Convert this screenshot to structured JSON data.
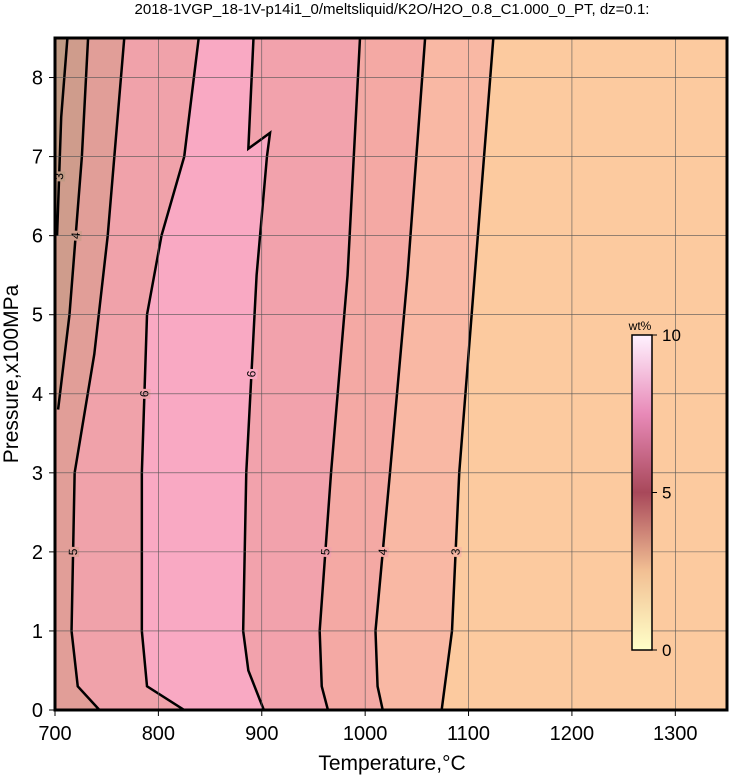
{
  "chart_data": {
    "type": "contour",
    "title": "2018-1VGP_18-1V-p14i1_0/meltsliquid/K2O/H2O_0.8_C1.000_0_PT, dz=0.1:",
    "x_label": "Temperature,°C",
    "y_label": "Pressure,x100MPa",
    "xlim": [
      700,
      1350
    ],
    "ylim": [
      0,
      8.5
    ],
    "xticks": [
      700,
      800,
      900,
      1000,
      1100,
      1200,
      1300
    ],
    "yticks": [
      0,
      1,
      2,
      3,
      4,
      5,
      6,
      7,
      8
    ],
    "grid": true,
    "background": "#fcca9f",
    "line_color": "#000000",
    "contours": [
      {
        "level": 3,
        "fill": "#f9b8a4",
        "x": [
          1074,
          1077,
          1084,
          1091,
          1106,
          1124
        ],
        "y": [
          0,
          0.3,
          1,
          3,
          5.5,
          8.5
        ]
      },
      {
        "level": 4,
        "fill": "#f4a9a4",
        "x": [
          1017,
          1012,
          1010,
          1024,
          1041,
          1058
        ],
        "y": [
          0,
          0.3,
          1,
          3,
          5.5,
          8.5
        ]
      },
      {
        "level": 5,
        "fill": "#f2a2ac",
        "x": [
          964,
          958,
          956,
          967,
          983,
          995
        ],
        "y": [
          0,
          0.3,
          1,
          3,
          5.5,
          8.5
        ]
      },
      {
        "level": 6,
        "fill": "#f9a9c3",
        "x": [
          902,
          887,
          882,
          885,
          895,
          905,
          908,
          887,
          892
        ],
        "y": [
          0,
          0.5,
          1,
          3,
          5.5,
          7.0,
          7.3,
          7.1,
          8.5
        ]
      },
      {
        "level": 6,
        "fill": "#f0a2aa",
        "x": [
          825,
          789,
          784,
          784,
          789,
          803,
          825,
          839
        ],
        "y": [
          0,
          0.3,
          1,
          3,
          5,
          6,
          7,
          8.5
        ]
      },
      {
        "level": 5,
        "fill": "#e19e98",
        "x": [
          743,
          722,
          716,
          719,
          738,
          751,
          767
        ],
        "y": [
          0,
          0.3,
          1,
          3,
          4.5,
          6,
          8.5
        ]
      },
      {
        "level": 4,
        "fill": "#cf9c8c",
        "x": [
          703,
          714,
          726,
          732
        ],
        "y": [
          3.8,
          5,
          7,
          8.5
        ]
      },
      {
        "level": 3,
        "fill": "#c09a84",
        "x": [
          702,
          706,
          712
        ],
        "y": [
          6,
          7.5,
          8.5
        ]
      }
    ],
    "colorbar": {
      "label": "wt%",
      "lim": [
        0,
        10
      ],
      "ticks": [
        0,
        5,
        10
      ],
      "colors": [
        "#ffffc8",
        "#f2c094",
        "#a8485a",
        "#e88ab8",
        "#fff2ff"
      ]
    }
  }
}
